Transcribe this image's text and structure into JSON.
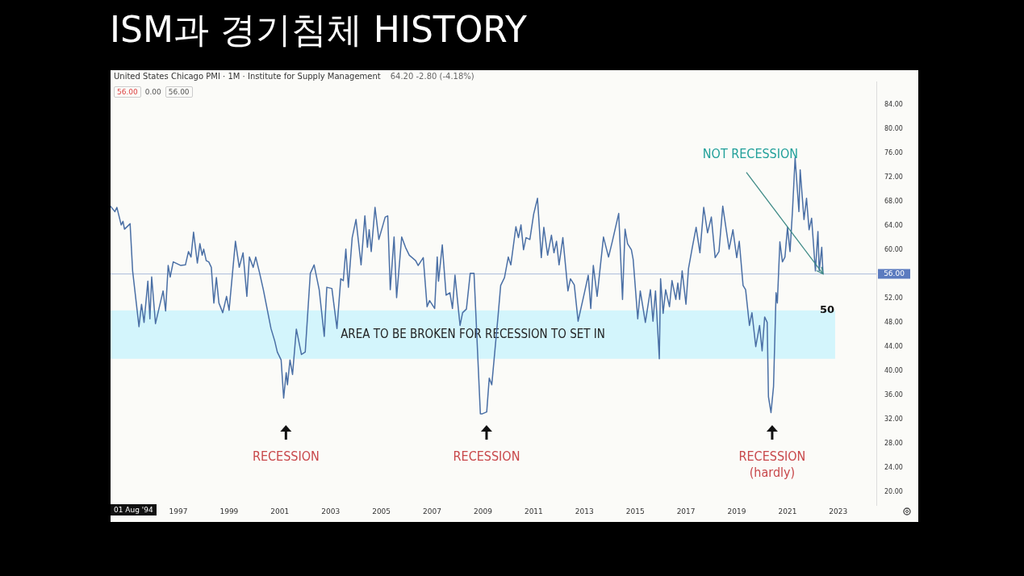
{
  "chart_data": {
    "type": "line",
    "title": "ISM과 경기침체 HISTORY",
    "subtitle": "United States Chicago PMI · 1M · Institute for Supply Management",
    "x": [
      1994.33,
      1994.5,
      1994.58,
      1994.75,
      1994.82,
      1994.88,
      1995.1,
      1995.2,
      1995.45,
      1995.55,
      1995.65,
      1995.8,
      1995.88,
      1995.95,
      1996.1,
      1996.4,
      1996.5,
      1996.6,
      1996.68,
      1996.8,
      1997.1,
      1997.28,
      1997.4,
      1997.5,
      1997.6,
      1997.75,
      1997.85,
      1997.94,
      1998.0,
      1998.1,
      1998.2,
      1998.3,
      1998.4,
      1998.5,
      1998.6,
      1998.75,
      1998.9,
      1999.0,
      1999.25,
      1999.4,
      1999.55,
      1999.7,
      1999.8,
      1999.95,
      2000.05,
      2000.2,
      2000.35,
      2000.5,
      2000.65,
      2000.8,
      2000.9,
      2001.05,
      2001.15,
      2001.25,
      2001.3,
      2001.4,
      2001.5,
      2001.65,
      2001.85,
      2002.0,
      2002.2,
      2002.35,
      2002.55,
      2002.75,
      2002.85,
      2003.05,
      2003.25,
      2003.4,
      2003.5,
      2003.6,
      2003.7,
      2003.85,
      2004.0,
      2004.2,
      2004.35,
      2004.45,
      2004.52,
      2004.6,
      2004.75,
      2004.9,
      2005.15,
      2005.25,
      2005.35,
      2005.5,
      2005.6,
      2005.8,
      2005.95,
      2006.1,
      2006.35,
      2006.45,
      2006.65,
      2006.8,
      2006.9,
      2007.1,
      2007.2,
      2007.25,
      2007.4,
      2007.55,
      2007.7,
      2007.8,
      2007.9,
      2008.05,
      2008.1,
      2008.2,
      2008.35,
      2008.5,
      2008.65,
      2008.9,
      2008.98,
      2009.15,
      2009.25,
      2009.35,
      2009.6,
      2009.7,
      2009.85,
      2010.0,
      2010.1,
      2010.3,
      2010.4,
      2010.5,
      2010.6,
      2010.7,
      2010.85,
      2011.0,
      2011.15,
      2011.3,
      2011.4,
      2011.55,
      2011.7,
      2011.8,
      2011.9,
      2012.0,
      2012.15,
      2012.35,
      2012.45,
      2012.6,
      2012.75,
      2013.0,
      2013.15,
      2013.25,
      2013.35,
      2013.5,
      2013.75,
      2013.95,
      2014.1,
      2014.35,
      2014.5,
      2014.6,
      2014.7,
      2014.85,
      2014.92,
      2015.1,
      2015.2,
      2015.4,
      2015.6,
      2015.7,
      2015.8,
      2015.95,
      2016.0,
      2016.1,
      2016.2,
      2016.35,
      2016.45,
      2016.6,
      2016.68,
      2016.75,
      2016.85,
      2017.0,
      2017.1,
      2017.25,
      2017.4,
      2017.55,
      2017.7,
      2017.85,
      2018.0,
      2018.15,
      2018.3,
      2018.45,
      2018.7,
      2018.85,
      2019.0,
      2019.1,
      2019.25,
      2019.35,
      2019.5,
      2019.6,
      2019.75,
      2019.9,
      2020.0,
      2020.1,
      2020.2,
      2020.25,
      2020.35,
      2020.45,
      2020.55,
      2020.6,
      2020.7,
      2020.8,
      2020.9,
      2021.0,
      2021.1,
      2021.2,
      2021.3,
      2021.45,
      2021.5,
      2021.65,
      2021.75,
      2021.85,
      2021.95,
      2022.1,
      2022.2,
      2022.25,
      2022.35,
      2022.4
    ],
    "series": [
      {
        "color": "#4a6fa5",
        "values": [
          67.2,
          66.3,
          67.0,
          64.1,
          64.7,
          63.4,
          64.3,
          56.5,
          47.3,
          51.0,
          48.0,
          54.8,
          48.6,
          55.5,
          47.8,
          53.2,
          49.9,
          57.4,
          55.5,
          58.0,
          57.4,
          57.5,
          59.7,
          58.8,
          62.9,
          57.8,
          61.0,
          59.1,
          60.1,
          58.2,
          58.0,
          57.1,
          51.2,
          55.4,
          51.2,
          49.6,
          52.3,
          50.0,
          61.4,
          57.1,
          59.5,
          52.3,
          58.8,
          57.1,
          58.8,
          56.2,
          53.4,
          50.2,
          47.0,
          44.9,
          43.1,
          41.8,
          35.5,
          39.7,
          37.7,
          41.8,
          39.4,
          46.9,
          42.7,
          43.1,
          56.1,
          57.5,
          53.4,
          45.7,
          53.8,
          53.6,
          47.0,
          55.2,
          54.9,
          60.1,
          53.8,
          62.0,
          65.0,
          57.5,
          65.6,
          60.4,
          63.3,
          59.7,
          67.0,
          61.7,
          65.4,
          65.6,
          53.4,
          62.1,
          52.1,
          62.1,
          60.4,
          59.1,
          58.2,
          57.4,
          58.7,
          50.6,
          51.6,
          50.3,
          58.8,
          54.8,
          60.8,
          52.5,
          52.9,
          50.3,
          55.8,
          49.5,
          47.5,
          49.6,
          50.2,
          56.1,
          56.1,
          32.9,
          32.9,
          33.2,
          38.8,
          37.7,
          49.2,
          54.1,
          55.4,
          58.8,
          57.5,
          63.8,
          62.0,
          64.1,
          60.0,
          62.0,
          61.7,
          65.9,
          68.5,
          58.7,
          63.7,
          59.1,
          62.4,
          59.5,
          61.4,
          57.5,
          62.0,
          53.2,
          55.2,
          54.2,
          48.2,
          52.9,
          55.8,
          50.3,
          57.4,
          52.3,
          62.1,
          58.8,
          61.4,
          66.0,
          51.8,
          63.4,
          61.0,
          60.0,
          58.4,
          48.6,
          53.2,
          48.0,
          53.4,
          48.2,
          53.2,
          42.0,
          55.2,
          49.5,
          53.4,
          50.6,
          54.9,
          51.8,
          54.5,
          51.8,
          56.5,
          51.0,
          56.9,
          60.4,
          63.7,
          59.5,
          67.0,
          62.8,
          65.4,
          58.7,
          59.7,
          67.2,
          60.1,
          63.3,
          58.7,
          61.4,
          54.1,
          53.4,
          47.5,
          49.6,
          44.0,
          47.5,
          43.3,
          48.9,
          48.0,
          35.7,
          33.1,
          37.4,
          52.9,
          51.2,
          61.3,
          58.0,
          58.8,
          63.7,
          59.7,
          66.7,
          75.2,
          66.3,
          73.2,
          65.0,
          68.5,
          63.3,
          65.2,
          56.5,
          63.0,
          56.5,
          60.4,
          56.0
        ]
      }
    ],
    "xlim": [
      1994.33,
      2024.5
    ],
    "xticks": [
      1997,
      1999,
      2001,
      2003,
      2005,
      2007,
      2009,
      2011,
      2013,
      2015,
      2017,
      2019,
      2021,
      2023
    ],
    "ylim": [
      17.8,
      87.7
    ],
    "yticks": [
      {
        "value": 20,
        "label": "20.00"
      },
      {
        "value": 24,
        "label": "24.00"
      },
      {
        "value": 28,
        "label": "28.00"
      },
      {
        "value": 32,
        "label": "32.00"
      },
      {
        "value": 36,
        "label": "36.00"
      },
      {
        "value": 40,
        "label": "40.00"
      },
      {
        "value": 44,
        "label": "44.00"
      },
      {
        "value": 48,
        "label": "48.00"
      },
      {
        "value": 52,
        "label": "52.00"
      },
      {
        "value": 60,
        "label": "60.00"
      },
      {
        "value": 64,
        "label": "64.00"
      },
      {
        "value": 68,
        "label": "68.00"
      },
      {
        "value": 72,
        "label": "72.00"
      },
      {
        "value": 76,
        "label": "76.00"
      },
      {
        "value": 80,
        "label": "80.00"
      },
      {
        "value": 84,
        "label": "84.00"
      }
    ],
    "ref_lines": [
      {
        "axis": "y",
        "value": 56,
        "label": "56.00",
        "color": "#5b7bbf"
      }
    ],
    "bands": [
      {
        "axis": "y",
        "from": 42,
        "to": 50,
        "label": "AREA TO BE BROKEN FOR RECESSION TO SET IN",
        "color": "#d3f5fc"
      }
    ],
    "annotations": [
      "56.00",
      "0.00",
      "56.00",
      "64.20 -2.80 (-4.18%)",
      "01 Aug '94",
      "RECESSION",
      "RECESSION",
      "RECESSION\n(hardly)",
      {
        "text": "NOT RECESSION",
        "x": 2022.4,
        "y": 56.0
      },
      {
        "text": "50",
        "y": 50
      }
    ],
    "grid": false,
    "legend": false,
    "marker": "none",
    "line_style": "solid"
  }
}
